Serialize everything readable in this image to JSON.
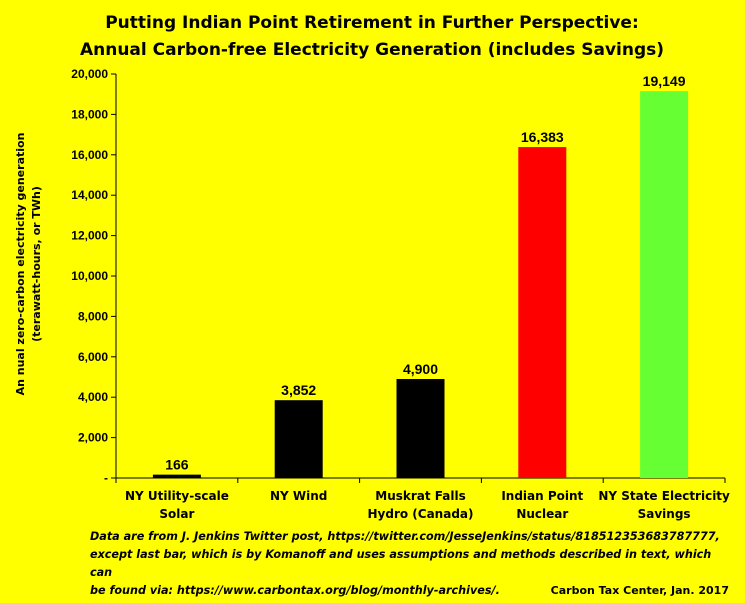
{
  "chart_data": {
    "type": "bar",
    "title_lines": [
      "Putting Indian Point Retirement in Further Perspective:",
      "Annual Carbon-free Electricity Generation (includes Savings)"
    ],
    "ylabel_lines": [
      "An nual zero-carbon electricity generation",
      "(terawatt-hours, or TWh)"
    ],
    "xlabel": "",
    "ylim": [
      0,
      20000
    ],
    "yticks": [
      {
        "value": 0,
        "label": "-"
      },
      {
        "value": 2000,
        "label": "2,000"
      },
      {
        "value": 4000,
        "label": "4,000"
      },
      {
        "value": 6000,
        "label": "6,000"
      },
      {
        "value": 8000,
        "label": "8,000"
      },
      {
        "value": 10000,
        "label": "10,000"
      },
      {
        "value": 12000,
        "label": "12,000"
      },
      {
        "value": 14000,
        "label": "14,000"
      },
      {
        "value": 16000,
        "label": "16,000"
      },
      {
        "value": 18000,
        "label": "18,000"
      },
      {
        "value": 20000,
        "label": "20,000"
      }
    ],
    "grid": false,
    "legend": "none",
    "bars": [
      {
        "category_lines": [
          "NY Utility-scale",
          "Solar"
        ],
        "value": 166,
        "label": "166",
        "color": "#000000"
      },
      {
        "category_lines": [
          "NY Wind"
        ],
        "value": 3852,
        "label": "3,852",
        "color": "#000000"
      },
      {
        "category_lines": [
          "Muskrat Falls",
          "Hydro (Canada)"
        ],
        "value": 4900,
        "label": "4,900",
        "color": "#000000"
      },
      {
        "category_lines": [
          "Indian Point",
          "Nuclear"
        ],
        "value": 16383,
        "label": "16,383",
        "color": "#ff0000"
      },
      {
        "category_lines": [
          "NY State Electricity",
          "Savings"
        ],
        "value": 19149,
        "label": "19,149",
        "color": "#66ff33"
      }
    ]
  },
  "footnote": {
    "lines": [
      "Data  are from J. Jenkins Twitter post,  https://twitter.com/JesseJenkins/status/818512353683787777,",
      "except last bar, which is by Komanoff and uses assumptions and methods described in text, which can",
      "be found via: https://www.carbontax.org/blog/monthly-archives/."
    ]
  },
  "credit": "Carbon Tax Center, Jan. 2017",
  "colors": {
    "background": "#ffff00",
    "bar_default": "#000000",
    "bar_nuclear": "#ff0000",
    "bar_savings": "#66ff33"
  }
}
